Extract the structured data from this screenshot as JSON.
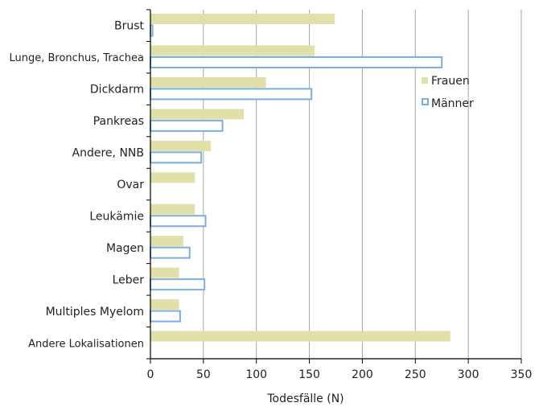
{
  "chart_data": {
    "type": "bar",
    "orientation": "horizontal",
    "categories": [
      "Brust",
      "Lunge, Bronchus, Trachea",
      "Dickdarm",
      "Pankreas",
      "Andere, NNB",
      "Ovar",
      "Leukämie",
      "Magen",
      "Leber",
      "Multiples Myelom",
      "Andere Lokalisationen"
    ],
    "series": [
      {
        "name": "Frauen",
        "color": "#e0e0a8",
        "style": "filled",
        "values": [
          174,
          155,
          109,
          88,
          57,
          42,
          42,
          31,
          27,
          27,
          283
        ]
      },
      {
        "name": "Männer",
        "color": "#7baedf",
        "style": "outline",
        "values": [
          2,
          275,
          152,
          68,
          48,
          null,
          52,
          37,
          51,
          28,
          null
        ]
      }
    ],
    "xlabel": "Todesfälle (N)",
    "xlim": [
      0,
      350
    ],
    "xticks": [
      0,
      50,
      100,
      150,
      200,
      250,
      300,
      350
    ],
    "grid": "vertical",
    "legend_position": "right-upper"
  }
}
